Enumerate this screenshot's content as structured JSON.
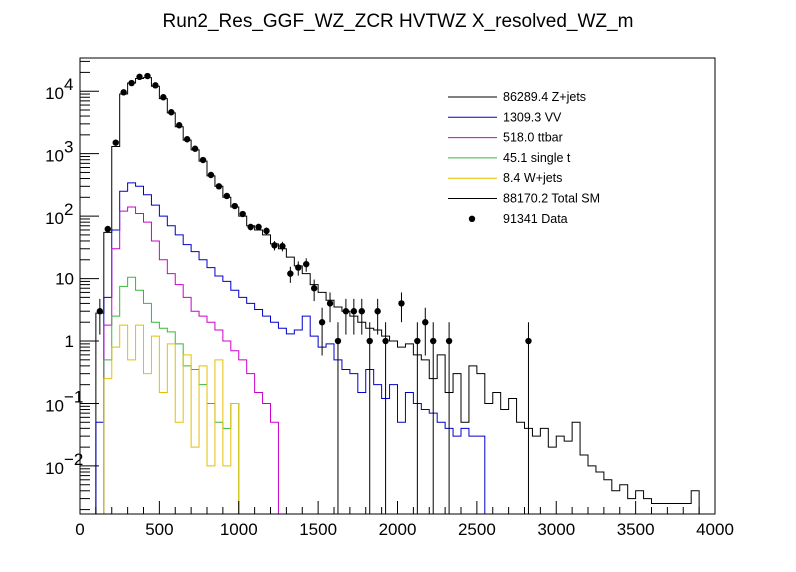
{
  "chart_data": {
    "type": "histogram",
    "title": "Run2_Res_GGF_WZ_ZCR HVTWZ  X_resolved_WZ_m",
    "xlabel": "",
    "ylabel": "",
    "xlim": [
      0,
      4000
    ],
    "ylim": [
      0.0017,
      34000
    ],
    "yscale": "log",
    "bin_width": 50,
    "grid": false,
    "legend_position": "top-right",
    "x_ticks": [
      {
        "value": 0,
        "label": "0"
      },
      {
        "value": 500,
        "label": "500"
      },
      {
        "value": 1000,
        "label": "1000"
      },
      {
        "value": 1500,
        "label": "1500"
      },
      {
        "value": 2000,
        "label": "2000"
      },
      {
        "value": 2500,
        "label": "2500"
      },
      {
        "value": 3000,
        "label": "3000"
      },
      {
        "value": 3500,
        "label": "3500"
      },
      {
        "value": 4000,
        "label": "4000"
      }
    ],
    "y_ticks": [
      {
        "value": 0.01,
        "label": "10",
        "exp": "−2"
      },
      {
        "value": 0.1,
        "label": "10",
        "exp": "−1"
      },
      {
        "value": 1,
        "label": "1",
        "exp": ""
      },
      {
        "value": 10,
        "label": "10",
        "exp": ""
      },
      {
        "value": 100,
        "label": "10",
        "exp": "2"
      },
      {
        "value": 1000,
        "label": "10",
        "exp": "3"
      },
      {
        "value": 10000,
        "label": "10",
        "exp": "4"
      }
    ],
    "series": [
      {
        "name": "Z+jets",
        "legend": "86289.4 Z+jets",
        "color": "#000000",
        "style": "step",
        "bin_lo": 100,
        "values": [
          2.8,
          55,
          1300,
          9000,
          13500,
          16000,
          16500,
          12000,
          7600,
          4500,
          2700,
          1650,
          1150,
          760,
          440,
          300,
          200,
          140,
          100,
          70,
          60,
          50,
          36,
          30,
          22,
          16,
          12,
          8,
          6,
          4.5,
          3.5,
          3.0,
          2.5,
          2.0,
          1.6,
          1.5,
          1.2,
          1.0,
          0.8,
          0.9,
          0.6,
          0.5,
          0.25,
          0.6,
          0.15,
          0.3,
          0.05,
          0.4,
          0.3,
          0.1,
          0.15,
          0.08,
          0.12,
          0.05,
          0.04,
          0.03,
          0.04,
          0.02,
          0.03,
          0.025,
          0.05,
          0.015,
          0.01,
          0.008,
          0.006,
          0.004,
          0.005,
          0.003,
          0.004,
          0.003,
          0.0025,
          0.0025,
          0.0025,
          0.0025,
          0.0025,
          0.004,
          0.0
        ]
      },
      {
        "name": "VV",
        "legend": "1309.3 VV",
        "color": "#0000cc",
        "style": "step",
        "bin_lo": 100,
        "values": [
          0.05,
          5,
          60,
          250,
          340,
          300,
          220,
          150,
          100,
          70,
          50,
          35,
          27,
          20,
          15,
          11,
          9,
          6.5,
          5,
          4,
          3.2,
          2.5,
          2.0,
          1.6,
          1.3,
          1.5,
          2.5,
          1.2,
          0.8,
          0.9,
          0.5,
          0.35,
          0.3,
          0.15,
          0.35,
          0.2,
          0.12,
          0.2,
          0.05,
          0.15,
          0.1,
          0.08,
          0.07,
          0.05,
          0.04,
          0.03,
          0.04,
          0.03,
          0.03,
          0.0,
          0.0,
          0.0,
          0.0,
          0.0,
          0.0,
          0.0,
          0.0,
          0.0,
          0.0,
          0.0
        ]
      },
      {
        "name": "ttbar",
        "legend": "518.0 ttbar",
        "color": "#cc00cc",
        "style": "step",
        "bin_lo": 100,
        "values": [
          0.0,
          1.8,
          30,
          120,
          140,
          110,
          80,
          40,
          20,
          12,
          8,
          5,
          3,
          2.5,
          2,
          1.5,
          1,
          0.7,
          0.5,
          0.3,
          0.15,
          0.1,
          0.05,
          0.0,
          0.0,
          0.0,
          0.0
        ]
      },
      {
        "name": "single t",
        "legend": "45.1 single t",
        "color": "#33bb33",
        "style": "step",
        "bin_lo": 100,
        "values": [
          0.0,
          0.5,
          2.5,
          7.5,
          10.5,
          6.5,
          4.0,
          2.0,
          1.6,
          1.4,
          0.9,
          0.4,
          0.35,
          0.2,
          0.1,
          0.05,
          0.04,
          0.1,
          0.0
        ]
      },
      {
        "name": "W+jets",
        "legend": "8.4 W+jets",
        "color": "#e6c000",
        "style": "step",
        "bin_lo": 100,
        "values": [
          0.0,
          0.25,
          0.8,
          1.8,
          0.5,
          1.8,
          0.3,
          1.2,
          0.15,
          0.9,
          0.05,
          0.6,
          0.02,
          0.4,
          0.01,
          0.5,
          0.01,
          0.1,
          0.0
        ]
      }
    ],
    "data": {
      "name": "Data",
      "legend": "91341 Data",
      "color": "#000000",
      "style": "points",
      "points": [
        {
          "x": 125,
          "y": 3
        },
        {
          "x": 175,
          "y": 62
        },
        {
          "x": 225,
          "y": 1500
        },
        {
          "x": 275,
          "y": 9600
        },
        {
          "x": 325,
          "y": 13500
        },
        {
          "x": 375,
          "y": 17000
        },
        {
          "x": 425,
          "y": 17500
        },
        {
          "x": 475,
          "y": 12400
        },
        {
          "x": 525,
          "y": 8000
        },
        {
          "x": 575,
          "y": 4600
        },
        {
          "x": 625,
          "y": 2850
        },
        {
          "x": 675,
          "y": 1700
        },
        {
          "x": 725,
          "y": 1200
        },
        {
          "x": 775,
          "y": 790
        },
        {
          "x": 825,
          "y": 455
        },
        {
          "x": 875,
          "y": 300
        },
        {
          "x": 925,
          "y": 210
        },
        {
          "x": 975,
          "y": 145
        },
        {
          "x": 1025,
          "y": 108
        },
        {
          "x": 1075,
          "y": 67
        },
        {
          "x": 1125,
          "y": 67
        },
        {
          "x": 1175,
          "y": 58
        },
        {
          "x": 1225,
          "y": 34
        },
        {
          "x": 1275,
          "y": 33
        },
        {
          "x": 1325,
          "y": 12
        },
        {
          "x": 1375,
          "y": 15
        },
        {
          "x": 1425,
          "y": 17
        },
        {
          "x": 1475,
          "y": 7
        },
        {
          "x": 1525,
          "y": 2
        },
        {
          "x": 1575,
          "y": 4
        },
        {
          "x": 1625,
          "y": 1
        },
        {
          "x": 1675,
          "y": 3
        },
        {
          "x": 1725,
          "y": 3
        },
        {
          "x": 1775,
          "y": 3
        },
        {
          "x": 1825,
          "y": 1
        },
        {
          "x": 1875,
          "y": 3
        },
        {
          "x": 1925,
          "y": 1
        },
        {
          "x": 2025,
          "y": 4
        },
        {
          "x": 2125,
          "y": 1
        },
        {
          "x": 2175,
          "y": 2
        },
        {
          "x": 2225,
          "y": 1
        },
        {
          "x": 2325,
          "y": 1
        },
        {
          "x": 2825,
          "y": 1
        }
      ]
    }
  }
}
